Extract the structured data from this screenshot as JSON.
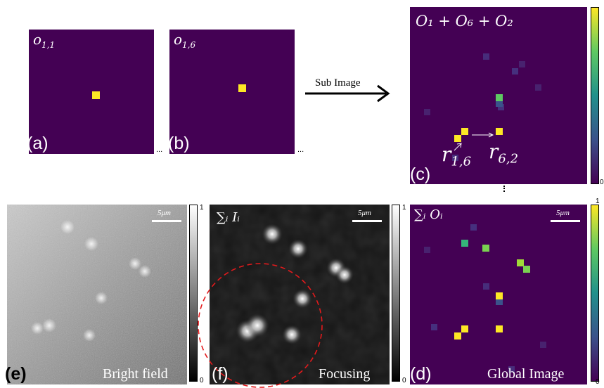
{
  "panels": {
    "a": {
      "tag": "(a)",
      "title_main": "o",
      "title_sub": "1,1"
    },
    "b": {
      "tag": "(b)",
      "title_main": "o",
      "title_sub": "1,6"
    },
    "c": {
      "tag": "(c)",
      "title": "O₁ + O₆ + O₂",
      "r_left_main": "r",
      "r_left_sub": "1,6",
      "r_right_main": "r",
      "r_right_sub": "6,2"
    },
    "e": {
      "tag": "(e)",
      "caption": "Bright field",
      "scale": "5μm"
    },
    "f": {
      "tag": "(f)",
      "caption": "Focusing",
      "scale": "5μm",
      "title": "∑ᵢ Iᵢ"
    },
    "d": {
      "tag": "(d)",
      "caption": "Global Image",
      "scale": "5μm",
      "title": "∑ᵢ Oᵢ"
    }
  },
  "arrow_label": "Sub Image",
  "ellipsis": "...",
  "colorbar_ticks": {
    "e_top": "1",
    "e_bottom": "0",
    "f_top": "1",
    "f_bottom": "0",
    "d_top": "1",
    "d_bottom": "0",
    "c_bottom": "0"
  },
  "colors": {
    "viridis_bg": "#440154",
    "yellow": "#fde725",
    "green": "#5ec962",
    "teal": "#21918c",
    "dashed_circle": "#e31a1c"
  }
}
